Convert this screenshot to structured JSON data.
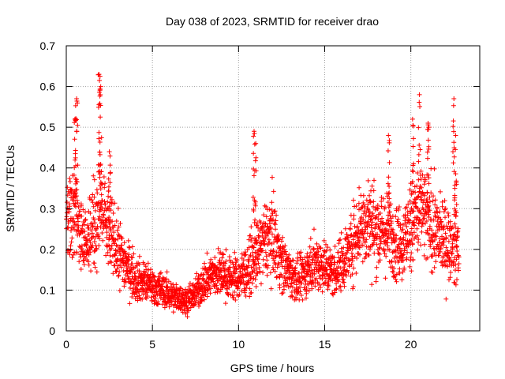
{
  "chart_data": {
    "type": "scatter",
    "title": "Day 038 of 2023, SRMTID for receiver drao",
    "xlabel": "GPS time / hours",
    "ylabel": "SRMTID / TECUs",
    "xlim": [
      0,
      24
    ],
    "ylim": [
      0,
      0.7
    ],
    "xticks": [
      0,
      5,
      10,
      15,
      20
    ],
    "xtick_labels": [
      "0",
      "5",
      "10",
      "15",
      "20"
    ],
    "yticks": [
      0,
      0.1,
      0.2,
      0.3,
      0.4,
      0.5,
      0.6,
      0.7
    ],
    "ytick_labels": [
      "0",
      "0.1",
      "0.2",
      "0.3",
      "0.4",
      "0.5",
      "0.6",
      "0.7"
    ],
    "grid": true,
    "marker": "+",
    "marker_color": "#ff0000",
    "x_data_range": [
      0,
      22.8
    ],
    "trend": {
      "x": [
        0,
        0.5,
        1.0,
        1.5,
        2.0,
        2.5,
        3.0,
        3.5,
        4.0,
        4.5,
        5.0,
        5.5,
        6.0,
        6.5,
        7.0,
        7.5,
        8.0,
        8.5,
        9.0,
        9.5,
        10.0,
        10.5,
        11.0,
        11.5,
        12.0,
        12.5,
        13.0,
        13.5,
        14.0,
        14.5,
        15.0,
        15.5,
        16.0,
        16.5,
        17.0,
        17.5,
        18.0,
        18.5,
        19.0,
        19.5,
        20.0,
        20.5,
        21.0,
        21.5,
        22.0,
        22.5,
        22.8
      ],
      "y": [
        0.26,
        0.3,
        0.22,
        0.25,
        0.3,
        0.24,
        0.2,
        0.16,
        0.13,
        0.12,
        0.11,
        0.1,
        0.09,
        0.08,
        0.075,
        0.09,
        0.12,
        0.14,
        0.14,
        0.13,
        0.13,
        0.15,
        0.18,
        0.22,
        0.24,
        0.17,
        0.14,
        0.12,
        0.15,
        0.17,
        0.16,
        0.14,
        0.17,
        0.2,
        0.26,
        0.27,
        0.25,
        0.24,
        0.23,
        0.21,
        0.26,
        0.3,
        0.27,
        0.24,
        0.22,
        0.2,
        0.2
      ]
    },
    "bursts": [
      {
        "x": 0.5,
        "y": 0.52
      },
      {
        "x": 0.6,
        "y": 0.57
      },
      {
        "x": 1.9,
        "y": 0.63
      },
      {
        "x": 2.0,
        "y": 0.6
      },
      {
        "x": 2.5,
        "y": 0.44
      },
      {
        "x": 10.9,
        "y": 0.49
      },
      {
        "x": 11.0,
        "y": 0.46
      },
      {
        "x": 18.7,
        "y": 0.48
      },
      {
        "x": 20.1,
        "y": 0.52
      },
      {
        "x": 20.5,
        "y": 0.58
      },
      {
        "x": 21.0,
        "y": 0.51
      },
      {
        "x": 22.5,
        "y": 0.57
      },
      {
        "x": 22.6,
        "y": 0.48
      }
    ]
  }
}
